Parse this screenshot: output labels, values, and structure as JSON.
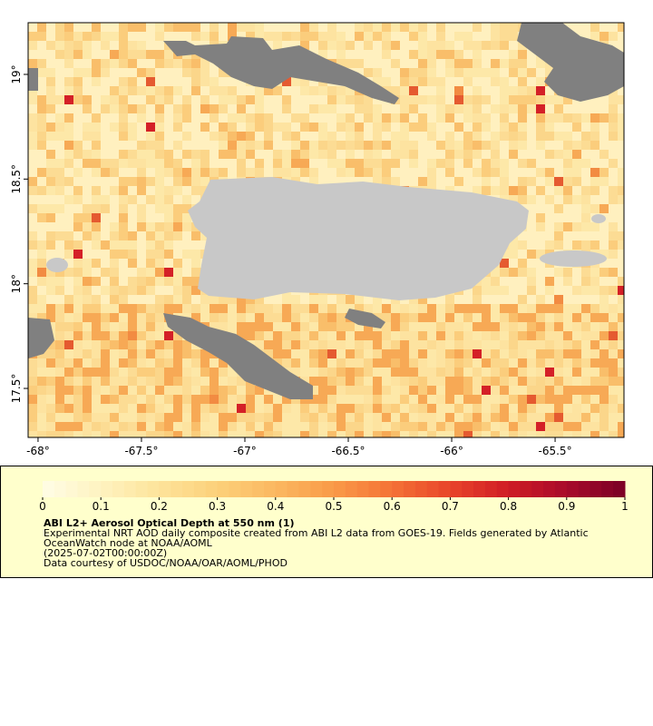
{
  "map": {
    "xlim": [
      -68.048,
      -65.167
    ],
    "ylim": [
      17.266,
      19.247
    ],
    "xticks": [
      {
        "value": -68,
        "label": "-68°"
      },
      {
        "value": -67.5,
        "label": "-67.5°"
      },
      {
        "value": -67,
        "label": "-67°"
      },
      {
        "value": -66.5,
        "label": "-66.5°"
      },
      {
        "value": -66,
        "label": "-66°"
      },
      {
        "value": -65.5,
        "label": "-65.5°"
      }
    ],
    "yticks": [
      {
        "value": 17.5,
        "label": "17.5°"
      },
      {
        "value": 18,
        "label": "18°"
      },
      {
        "value": 18.5,
        "label": "18.5°"
      },
      {
        "value": 19,
        "label": "19°"
      }
    ]
  },
  "colorbar": {
    "range": [
      0,
      1
    ],
    "ticks": [
      0,
      0.1,
      0.2,
      0.3,
      0.4,
      0.5,
      0.6,
      0.7,
      0.8,
      0.9,
      1
    ],
    "colors": [
      "#fffde6",
      "#fef3c0",
      "#fde39a",
      "#fcd07a",
      "#fbb860",
      "#f99a48",
      "#f47236",
      "#e8442a",
      "#cf1c25",
      "#a80a2a",
      "#7a0026"
    ]
  },
  "legend": {
    "title": "ABI L2+ Aerosol Optical Depth at 550 nm (1)",
    "lines": [
      "Experimental NRT AOD daily composite created from ABI L2 data from GOES-19. Fields generated by Atlantic",
      "OceanWatch node at NOAA/AOML",
      "(2025-07-02T00:00:00Z)",
      "Data courtesy of USDOC/NOAA/OAR/AOML/PHOD"
    ]
  }
}
